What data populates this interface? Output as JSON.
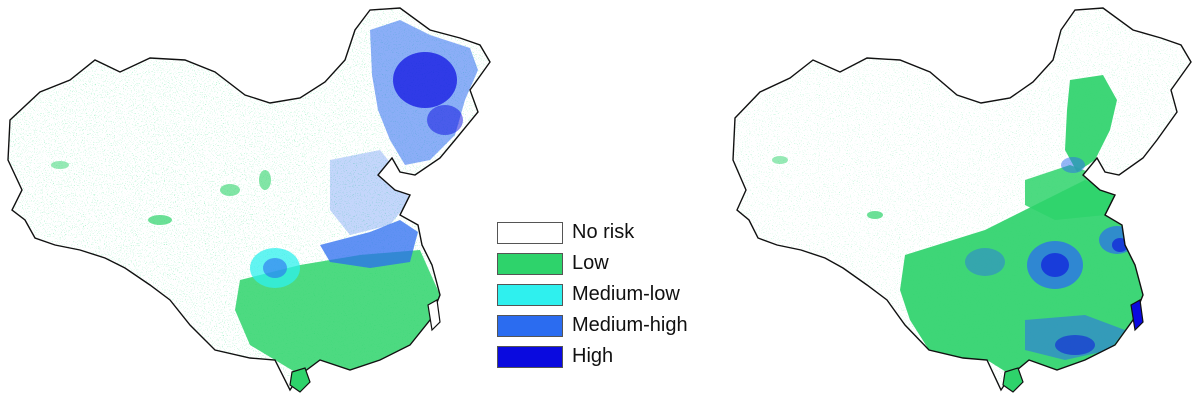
{
  "legend": {
    "items": [
      {
        "label": "No risk",
        "color": "#ffffff"
      },
      {
        "label": "Low",
        "color": "#2ed36b"
      },
      {
        "label": "Medium-low",
        "color": "#2ff0ee"
      },
      {
        "label": "Medium-high",
        "color": "#2b6cf0"
      },
      {
        "label": "High",
        "color": "#0a0adf"
      }
    ]
  },
  "maps": {
    "left": {
      "region": "China"
    },
    "right": {
      "region": "China"
    }
  }
}
